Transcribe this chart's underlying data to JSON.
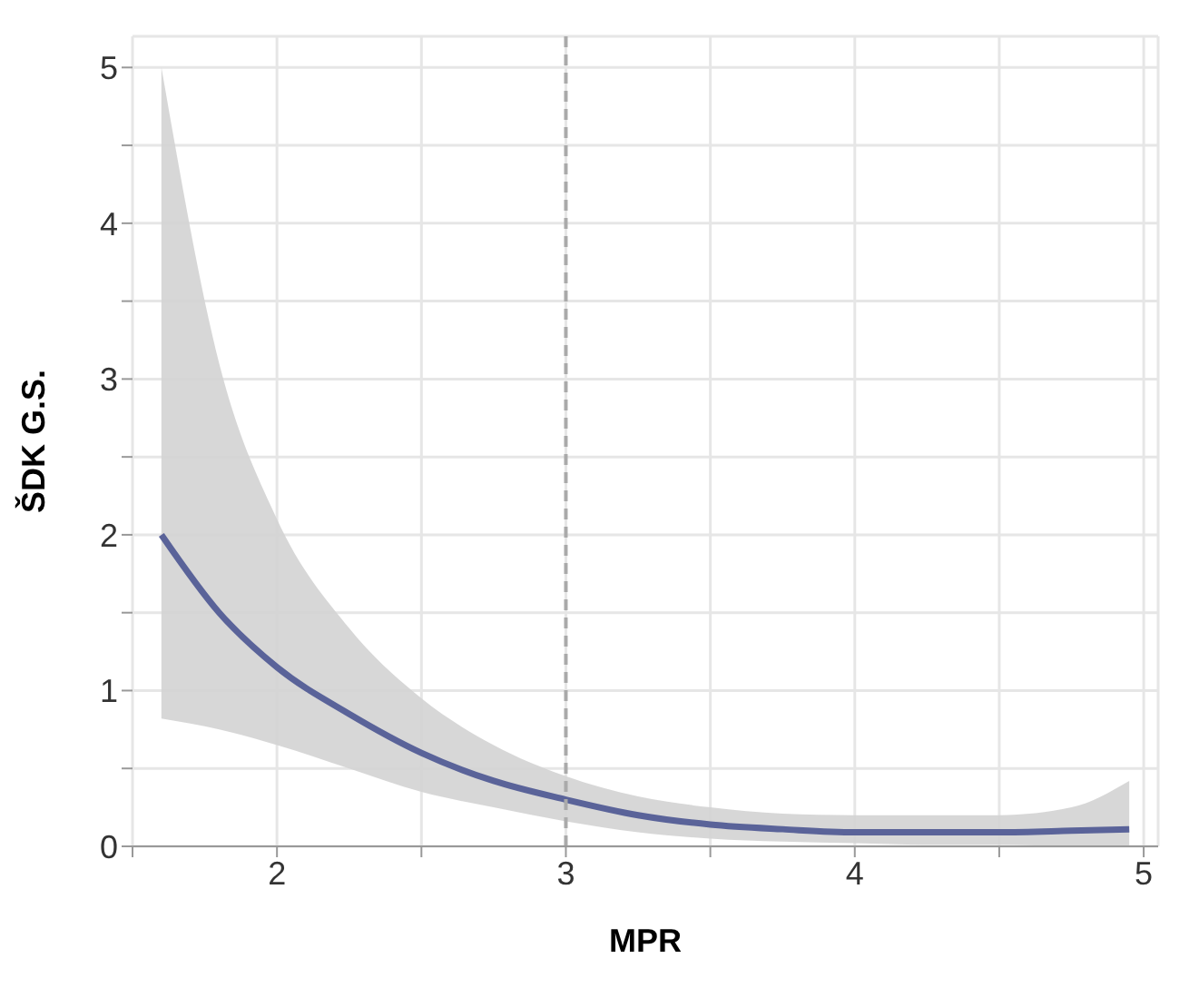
{
  "chart_data": {
    "type": "line",
    "xlabel": "MPR",
    "ylabel": "ŠDK G.S.",
    "x": [
      1.6,
      1.8,
      2.0,
      2.25,
      2.5,
      2.75,
      3.0,
      3.25,
      3.5,
      3.75,
      4.0,
      4.25,
      4.5,
      4.75,
      4.95
    ],
    "series": [
      {
        "color": "#5a6399",
        "values": [
          2.0,
          1.5,
          1.15,
          0.85,
          0.6,
          0.42,
          0.3,
          0.2,
          0.14,
          0.11,
          0.09,
          0.09,
          0.09,
          0.1,
          0.11
        ],
        "lower": [
          0.82,
          0.75,
          0.65,
          0.5,
          0.35,
          0.25,
          0.16,
          0.09,
          0.05,
          0.03,
          0.02,
          0.01,
          0.01,
          0.0,
          0.0
        ],
        "upper": [
          5.0,
          3.1,
          2.1,
          1.4,
          0.95,
          0.65,
          0.45,
          0.32,
          0.25,
          0.21,
          0.2,
          0.2,
          0.2,
          0.25,
          0.42
        ]
      }
    ],
    "xlim": [
      1.5,
      5.05
    ],
    "ylim": [
      0,
      5.2
    ],
    "xticks": [
      {
        "value": 1.5,
        "label": null
      },
      2,
      {
        "value": 2.5,
        "label": null
      },
      3,
      {
        "value": 3.5,
        "label": null
      },
      4,
      {
        "value": 4.5,
        "label": null
      },
      5
    ],
    "yticks": [
      0,
      {
        "value": 0.5,
        "label": null
      },
      1,
      {
        "value": 1.5,
        "label": null
      },
      2,
      {
        "value": 2.5,
        "label": null
      },
      3,
      {
        "value": 3.5,
        "label": null
      },
      4,
      {
        "value": 4.5,
        "label": null
      },
      5
    ],
    "ref_lines": [
      {
        "axis": "x",
        "value": 3,
        "color": "#aaaaaa",
        "line_style": "dashed"
      }
    ],
    "grid": true,
    "line_style": "solid",
    "marker": "none",
    "legend": false
  }
}
